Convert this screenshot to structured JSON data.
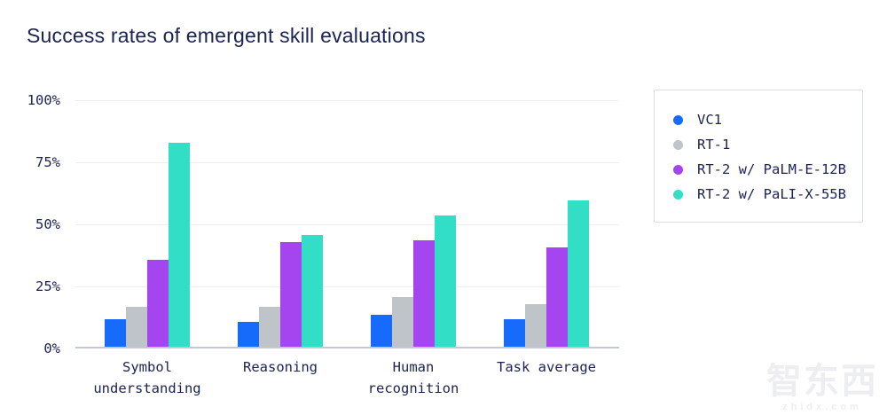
{
  "title": "Success rates of emergent skill evaluations",
  "colors": {
    "text_navy": "#1A2353",
    "gridline": "#ECEEF2",
    "axis_baseline": "#C3C9D3",
    "legend_border": "#DADDE2",
    "background": "#FFFFFF"
  },
  "chart_data": {
    "type": "bar",
    "title": "Success rates of emergent skill evaluations",
    "categories": [
      "Symbol understanding",
      "Reasoning",
      "Human recognition",
      "Task average"
    ],
    "category_display": [
      "Symbol\nunderstanding",
      "Reasoning",
      "Human\nrecognition",
      "Task average"
    ],
    "series": [
      {
        "name": "VC1",
        "color": "#176BFA",
        "values": [
          11,
          10,
          13,
          11
        ]
      },
      {
        "name": "RT-1",
        "color": "#BFC4C9",
        "values": [
          16,
          16,
          20,
          17
        ]
      },
      {
        "name": "RT-2 w/ PaLM-E-12B",
        "color": "#A445F0",
        "values": [
          35,
          42,
          43,
          40
        ]
      },
      {
        "name": "RT-2 w/ PaLI-X-55B",
        "color": "#32DFC6",
        "values": [
          82,
          45,
          53,
          59
        ]
      }
    ],
    "xlabel": "",
    "ylabel": "",
    "ylim": [
      0,
      100
    ],
    "yticks": [
      0,
      25,
      50,
      75,
      100
    ],
    "ytick_labels": [
      "0%",
      "25%",
      "50%",
      "75%",
      "100%"
    ],
    "grid": true,
    "legend_position": "right"
  },
  "watermark": {
    "text": "智东西",
    "subtext": "zhidx.com"
  }
}
